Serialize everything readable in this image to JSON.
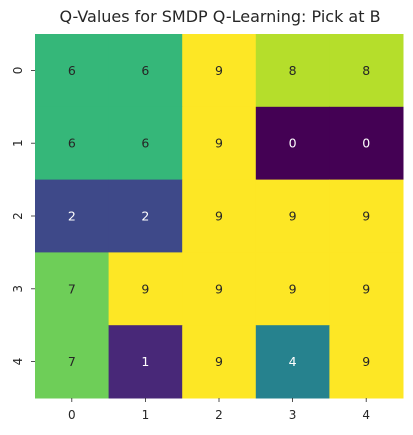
{
  "chart_data": {
    "type": "heatmap",
    "title": "Q-Values for SMDP Q-Learning: Pick at B",
    "x_tick_labels": [
      "0",
      "1",
      "2",
      "3",
      "4"
    ],
    "y_tick_labels": [
      "0",
      "1",
      "2",
      "3",
      "4"
    ],
    "values": [
      [
        6,
        6,
        9,
        8,
        8
      ],
      [
        6,
        6,
        9,
        0,
        0
      ],
      [
        2,
        2,
        9,
        9,
        9
      ],
      [
        7,
        9,
        9,
        9,
        9
      ],
      [
        7,
        1,
        9,
        4,
        9
      ]
    ],
    "value_range": [
      0,
      9
    ],
    "colormap": "viridis",
    "colorbar": false,
    "grid": false
  }
}
